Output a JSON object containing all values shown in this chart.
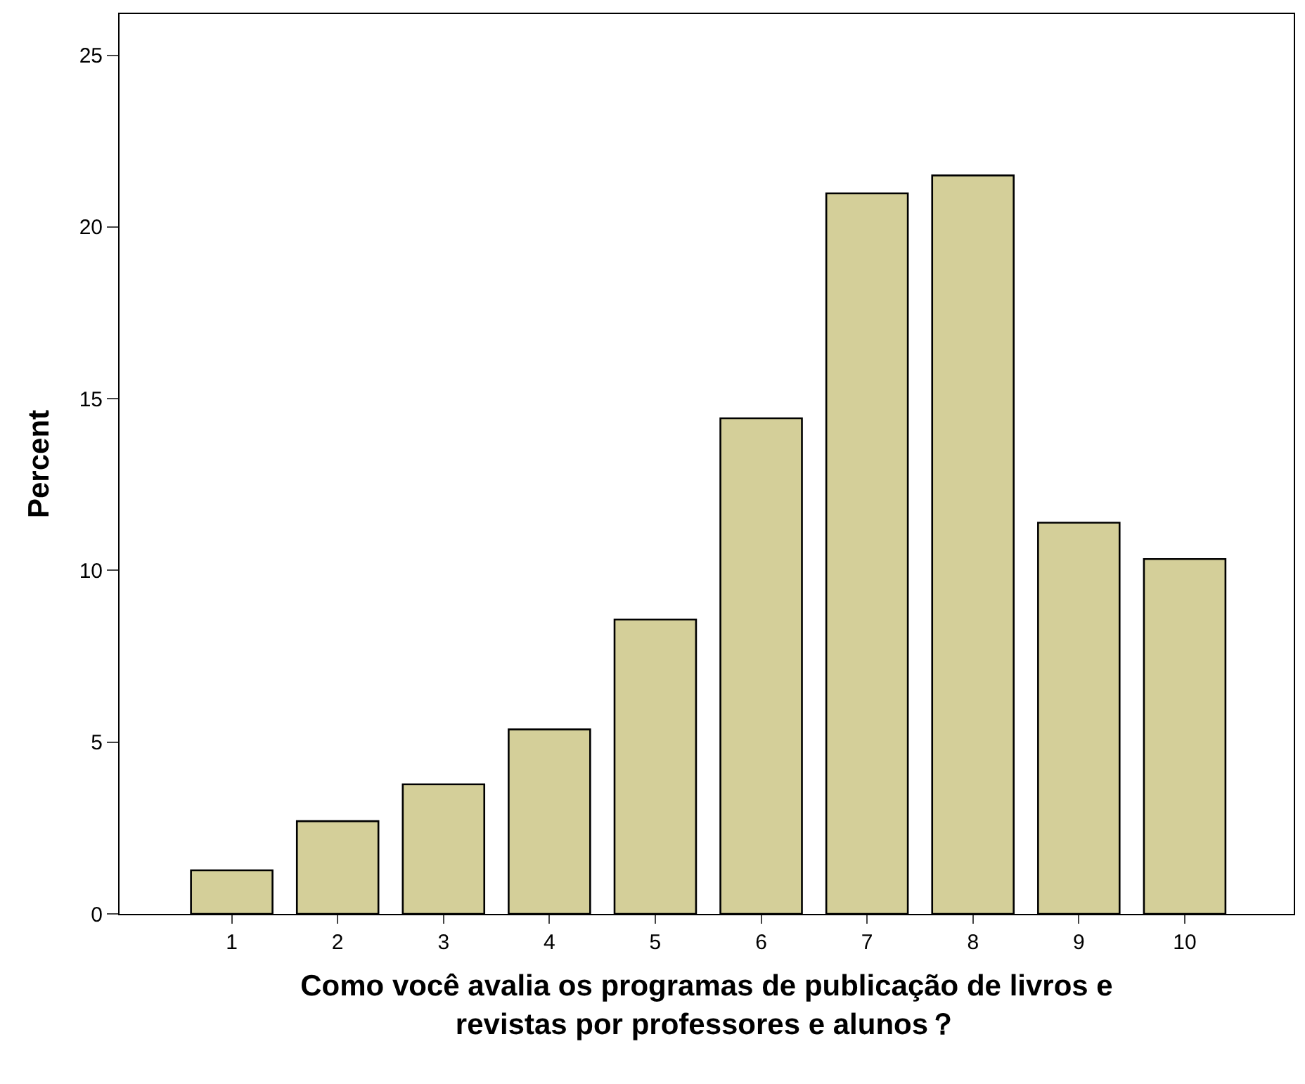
{
  "chart_data": {
    "type": "bar",
    "xlabel": "Como você avalia os programas de publicação de livros e\nrevistas por professores e alunos？",
    "ylabel": "Percent",
    "categories": [
      "1",
      "2",
      "3",
      "4",
      "5",
      "6",
      "7",
      "8",
      "9",
      "10"
    ],
    "values": [
      1.27,
      2.7,
      3.77,
      5.37,
      8.57,
      14.43,
      20.98,
      21.5,
      11.39,
      10.33
    ],
    "color": "#d4cf99",
    "ylim": [
      0,
      26.2
    ],
    "yticks": [
      0,
      5,
      10,
      15,
      20,
      25
    ]
  }
}
